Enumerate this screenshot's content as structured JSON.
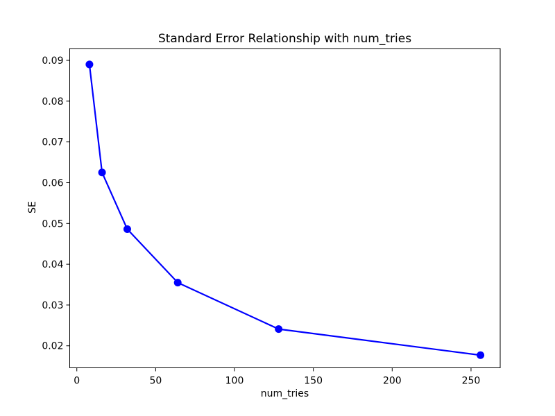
{
  "figure": {
    "background": "#ffffff"
  },
  "chart_data": {
    "type": "line",
    "title": "Standard Error Relationship with num_tries",
    "xlabel": "num_tries",
    "ylabel": "SE",
    "series": [
      {
        "name": "SE",
        "x": [
          8,
          16,
          32,
          64,
          128,
          256
        ],
        "y": [
          0.089,
          0.0625,
          0.0486,
          0.0355,
          0.0241,
          0.0177
        ],
        "color": "#0000ff",
        "marker": "circle"
      }
    ],
    "xlim": [
      -4.5,
      268.5
    ],
    "ylim": [
      0.0146,
      0.0929
    ],
    "xticks": [
      0,
      50,
      100,
      150,
      200,
      250
    ],
    "yticks": [
      0.02,
      0.03,
      0.04,
      0.05,
      0.06,
      0.07,
      0.08,
      0.09
    ],
    "ytick_decimals": 2,
    "grid": false,
    "legend": null,
    "axis_color": "#000000",
    "text_color": "#000000"
  }
}
